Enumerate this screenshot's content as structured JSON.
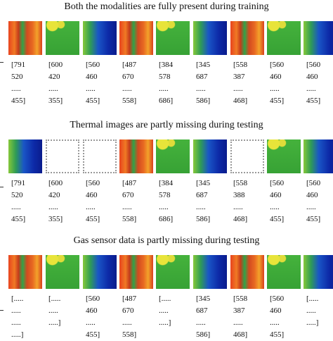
{
  "panels": [
    {
      "title": "Both the modalities are fully present during training",
      "images": [
        "#e0401f",
        "#3fae3a",
        "#1a38b8",
        "#e0401f",
        "#3fae3a",
        "#1a38b8",
        "#e0401f",
        "#3fae3a",
        "#1a38b8"
      ],
      "columns": [
        [
          "[791",
          "520",
          ".....",
          "455]"
        ],
        [
          "[600",
          "420",
          ".....",
          "355]"
        ],
        [
          "[560",
          "460",
          ".....",
          "455]"
        ],
        [
          "[487",
          "670",
          ".....",
          "558]"
        ],
        [
          "[384",
          "578",
          ".....",
          "686]"
        ],
        [
          "[345",
          "687",
          ".....",
          "586]"
        ],
        [
          "[558",
          "387",
          ".....",
          "468]"
        ],
        [
          "[560",
          "460",
          ".....",
          "455]"
        ],
        [
          "[560",
          "460",
          ".....",
          "455]"
        ]
      ]
    },
    {
      "title": "Thermal images are partly missing during testing",
      "images": [
        "#1a38b8",
        null,
        null,
        "#e0401f",
        "#3fae3a",
        "#1a38b8",
        null,
        "#3fae3a",
        "#1a38b8"
      ],
      "columns": [
        [
          "[791",
          "520",
          ".....",
          "455]"
        ],
        [
          "[600",
          "420",
          ".....",
          "355]"
        ],
        [
          "[560",
          "460",
          ".....",
          "455]"
        ],
        [
          "[487",
          "670",
          ".....",
          "558]"
        ],
        [
          "[384",
          "578",
          ".....",
          "686]"
        ],
        [
          "[345",
          "687",
          ".....",
          "586]"
        ],
        [
          "[558",
          "388",
          ".....",
          "468]"
        ],
        [
          "[560",
          "460",
          ".....",
          "455]"
        ],
        [
          "[560",
          "460",
          ".....",
          "455]"
        ]
      ]
    },
    {
      "title": "Gas sensor data is partly missing during testing",
      "images": [
        "#e0401f",
        "#3fae3a",
        "#1a38b8",
        "#e0401f",
        "#3fae3a",
        "#1a38b8",
        "#e0401f",
        "#3fae3a",
        "#1a38b8"
      ],
      "columns": [
        [
          "[.....",
          ".....",
          ".....",
          ".....]"
        ],
        [
          "[.....",
          ".....",
          ".....]"
        ],
        [
          "[560",
          "460",
          ".....",
          "455]"
        ],
        [
          "[487",
          "670",
          ".....",
          "558]"
        ],
        [
          "[.....",
          ".....",
          ".....]"
        ],
        [
          "[345",
          "687",
          ".....",
          "586]"
        ],
        [
          "[558",
          "387",
          ".....",
          "468]"
        ],
        [
          "[560",
          "460",
          ".....",
          "455]"
        ],
        [
          "[.....",
          ".....",
          ".....]"
        ]
      ]
    }
  ]
}
